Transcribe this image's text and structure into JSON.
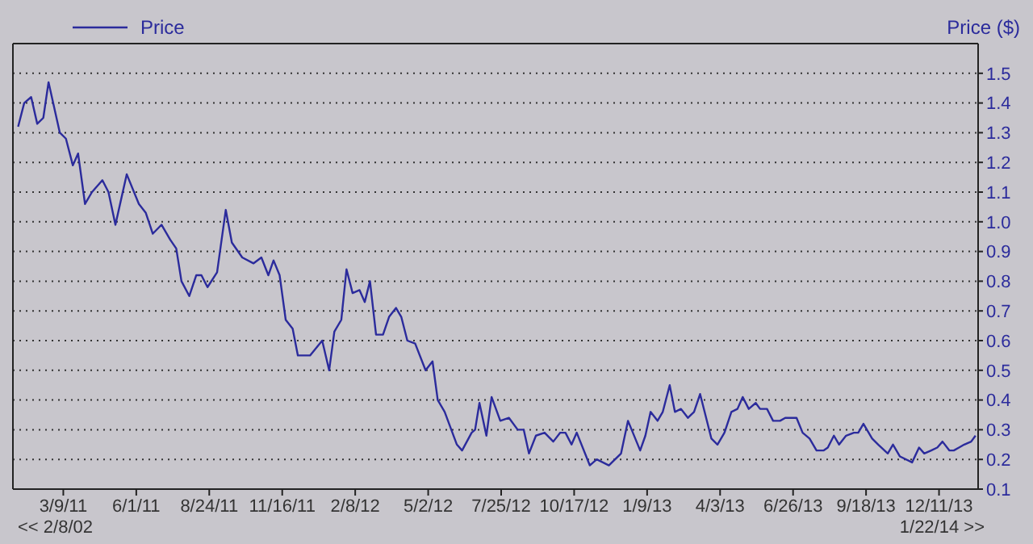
{
  "chart_data": {
    "type": "line",
    "ylabel": "Price ($)",
    "annotations": [
      "<< 2/8/02",
      "1/22/14 >>"
    ],
    "series": [
      {
        "name": "Price",
        "color": "#2b2b9c",
        "x": [
          "2011-01-16",
          "2011-01-23",
          "2011-01-31",
          "2011-02-07",
          "2011-02-14",
          "2011-02-20",
          "2011-03-05",
          "2011-03-12",
          "2011-03-20",
          "2011-03-26",
          "2011-04-03",
          "2011-04-11",
          "2011-04-23",
          "2011-04-30",
          "2011-05-08",
          "2011-05-21",
          "2011-06-04",
          "2011-06-12",
          "2011-06-20",
          "2011-06-30",
          "2011-07-10",
          "2011-07-17",
          "2011-07-23",
          "2011-08-01",
          "2011-08-09",
          "2011-08-15",
          "2011-08-22",
          "2011-09-02",
          "2011-09-12",
          "2011-09-19",
          "2011-10-01",
          "2011-10-14",
          "2011-10-23",
          "2011-10-31",
          "2011-11-06",
          "2011-11-13",
          "2011-11-20",
          "2011-11-28",
          "2011-12-04",
          "2011-12-18",
          "2012-01-01",
          "2012-01-09",
          "2012-01-15",
          "2012-01-23",
          "2012-01-29",
          "2012-02-05",
          "2012-02-13",
          "2012-02-19",
          "2012-02-25",
          "2012-03-03",
          "2012-03-11",
          "2012-03-18",
          "2012-03-26",
          "2012-04-01",
          "2012-04-08",
          "2012-04-17",
          "2012-04-29",
          "2012-05-07",
          "2012-05-13",
          "2012-05-21",
          "2012-06-04",
          "2012-06-10",
          "2012-06-21",
          "2012-06-25",
          "2012-06-30",
          "2012-07-08",
          "2012-07-14",
          "2012-07-24",
          "2012-08-03",
          "2012-08-13",
          "2012-08-20",
          "2012-08-26",
          "2012-09-03",
          "2012-09-13",
          "2012-09-23",
          "2012-10-01",
          "2012-10-07",
          "2012-10-14",
          "2012-10-20",
          "2012-11-04",
          "2012-11-12",
          "2012-11-26",
          "2012-12-10",
          "2012-12-18",
          "2013-01-01",
          "2013-01-07",
          "2013-01-13",
          "2013-01-21",
          "2013-01-27",
          "2013-02-04",
          "2013-02-10",
          "2013-02-17",
          "2013-02-25",
          "2013-03-04",
          "2013-03-11",
          "2013-03-24",
          "2013-03-31",
          "2013-04-08",
          "2013-04-16",
          "2013-04-23",
          "2013-04-29",
          "2013-05-06",
          "2013-05-14",
          "2013-05-19",
          "2013-05-27",
          "2013-06-03",
          "2013-06-11",
          "2013-06-17",
          "2013-06-30",
          "2013-07-07",
          "2013-07-15",
          "2013-07-23",
          "2013-07-31",
          "2013-08-05",
          "2013-08-12",
          "2013-08-18",
          "2013-08-26",
          "2013-09-04",
          "2013-09-09",
          "2013-09-15",
          "2013-09-25",
          "2013-10-02",
          "2013-10-13",
          "2013-10-19",
          "2013-10-27",
          "2013-11-10",
          "2013-11-18",
          "2013-11-24",
          "2013-12-02",
          "2013-12-09",
          "2013-12-15",
          "2013-12-23",
          "2013-12-28",
          "2014-01-03",
          "2014-01-09",
          "2014-01-17",
          "2014-01-22"
        ],
        "values": [
          1.32,
          1.4,
          1.42,
          1.33,
          1.35,
          1.47,
          1.3,
          1.28,
          1.19,
          1.23,
          1.06,
          1.1,
          1.14,
          1.1,
          0.99,
          1.16,
          1.06,
          1.03,
          0.96,
          0.99,
          0.94,
          0.91,
          0.8,
          0.75,
          0.82,
          0.82,
          0.78,
          0.83,
          1.04,
          0.93,
          0.88,
          0.86,
          0.88,
          0.82,
          0.87,
          0.82,
          0.67,
          0.64,
          0.55,
          0.55,
          0.6,
          0.5,
          0.63,
          0.67,
          0.84,
          0.76,
          0.77,
          0.73,
          0.8,
          0.62,
          0.62,
          0.68,
          0.71,
          0.68,
          0.6,
          0.59,
          0.5,
          0.53,
          0.4,
          0.36,
          0.25,
          0.23,
          0.29,
          0.3,
          0.39,
          0.28,
          0.41,
          0.33,
          0.34,
          0.3,
          0.3,
          0.22,
          0.28,
          0.29,
          0.26,
          0.29,
          0.29,
          0.25,
          0.29,
          0.18,
          0.2,
          0.18,
          0.22,
          0.33,
          0.23,
          0.28,
          0.36,
          0.33,
          0.36,
          0.45,
          0.36,
          0.37,
          0.34,
          0.36,
          0.42,
          0.27,
          0.25,
          0.29,
          0.36,
          0.37,
          0.41,
          0.37,
          0.39,
          0.37,
          0.37,
          0.33,
          0.33,
          0.34,
          0.34,
          0.29,
          0.27,
          0.23,
          0.23,
          0.24,
          0.28,
          0.25,
          0.28,
          0.29,
          0.29,
          0.32,
          0.27,
          0.25,
          0.22,
          0.25,
          0.21,
          0.19,
          0.24,
          0.22,
          0.23,
          0.24,
          0.26,
          0.23,
          0.23,
          0.24,
          0.25,
          0.26,
          0.28
        ]
      }
    ],
    "xlim": [
      "2011-01-10",
      "2014-01-25"
    ],
    "xticks": [
      {
        "value": "2011-03-09",
        "label": "3/9/11"
      },
      {
        "value": "2011-06-01",
        "label": "6/1/11"
      },
      {
        "value": "2011-08-24",
        "label": "8/24/11"
      },
      {
        "value": "2011-11-16",
        "label": "11/16/11"
      },
      {
        "value": "2012-02-08",
        "label": "2/8/12"
      },
      {
        "value": "2012-05-02",
        "label": "5/2/12"
      },
      {
        "value": "2012-07-25",
        "label": "7/25/12"
      },
      {
        "value": "2012-10-17",
        "label": "10/17/12"
      },
      {
        "value": "2013-01-09",
        "label": "1/9/13"
      },
      {
        "value": "2013-04-03",
        "label": "4/3/13"
      },
      {
        "value": "2013-06-26",
        "label": "6/26/13"
      },
      {
        "value": "2013-09-18",
        "label": "9/18/13"
      },
      {
        "value": "2013-12-11",
        "label": "12/11/13"
      }
    ],
    "ylim": [
      0.1,
      1.6
    ],
    "yticks": [
      0.1,
      0.2,
      0.3,
      0.4,
      0.5,
      0.6,
      0.7,
      0.8,
      0.9,
      {
        "value": 1,
        "label": "1.0"
      },
      1.1,
      1.2,
      1.3,
      1.4,
      1.5
    ],
    "grid": "y",
    "legend": "top left",
    "marker": "none",
    "line_style": "solid"
  }
}
